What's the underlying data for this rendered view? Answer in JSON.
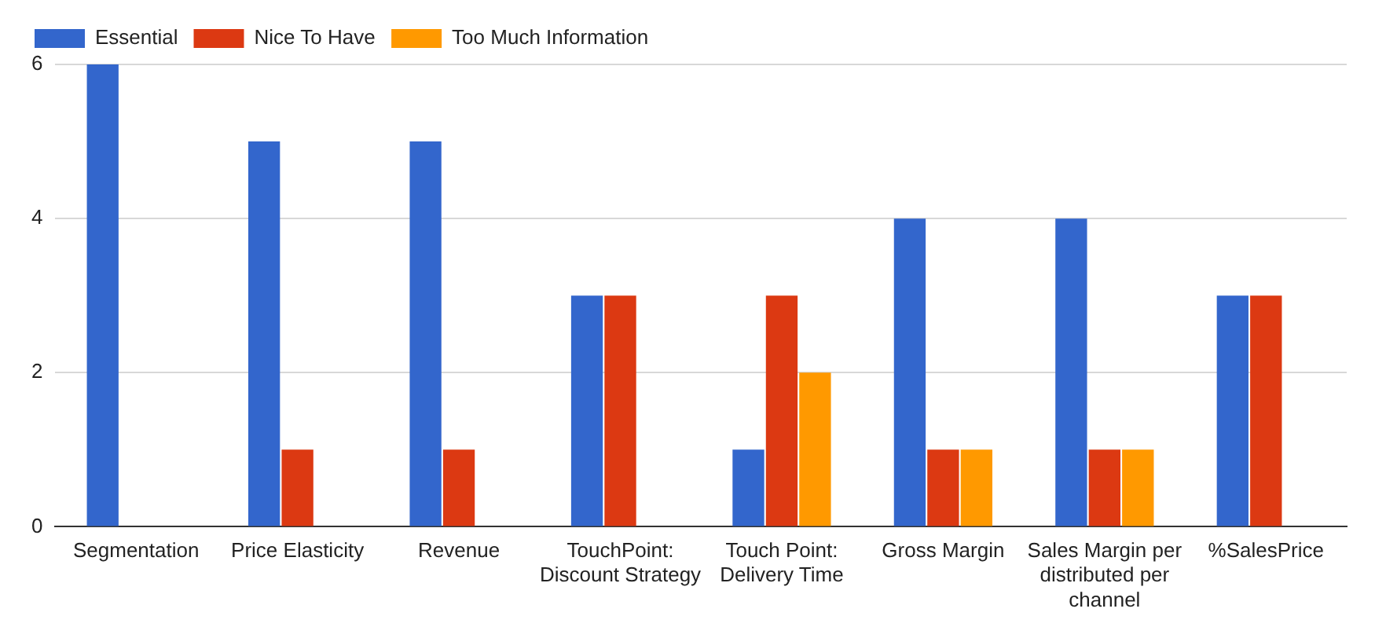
{
  "chart_data": {
    "type": "bar",
    "categories": [
      "Segmentation",
      "Price Elasticity",
      "Revenue",
      "TouchPoint: Discount Strategy",
      "Touch Point: Delivery Time",
      "Gross Margin",
      "Sales Margin per distributed per channel",
      "%SalesPrice"
    ],
    "series": [
      {
        "name": "Essential",
        "color": "#3366cc",
        "values": [
          6,
          5,
          5,
          3,
          1,
          4,
          4,
          3
        ]
      },
      {
        "name": "Nice To Have",
        "color": "#dc3912",
        "values": [
          0,
          1,
          1,
          3,
          3,
          1,
          1,
          3
        ]
      },
      {
        "name": "Too Much Information",
        "color": "#ff9900",
        "values": [
          0,
          0,
          0,
          0,
          2,
          1,
          1,
          0
        ]
      }
    ],
    "ylim": [
      0,
      6
    ],
    "yticks": [
      0,
      2,
      4,
      6
    ],
    "grid": "y",
    "legend": "top left"
  }
}
